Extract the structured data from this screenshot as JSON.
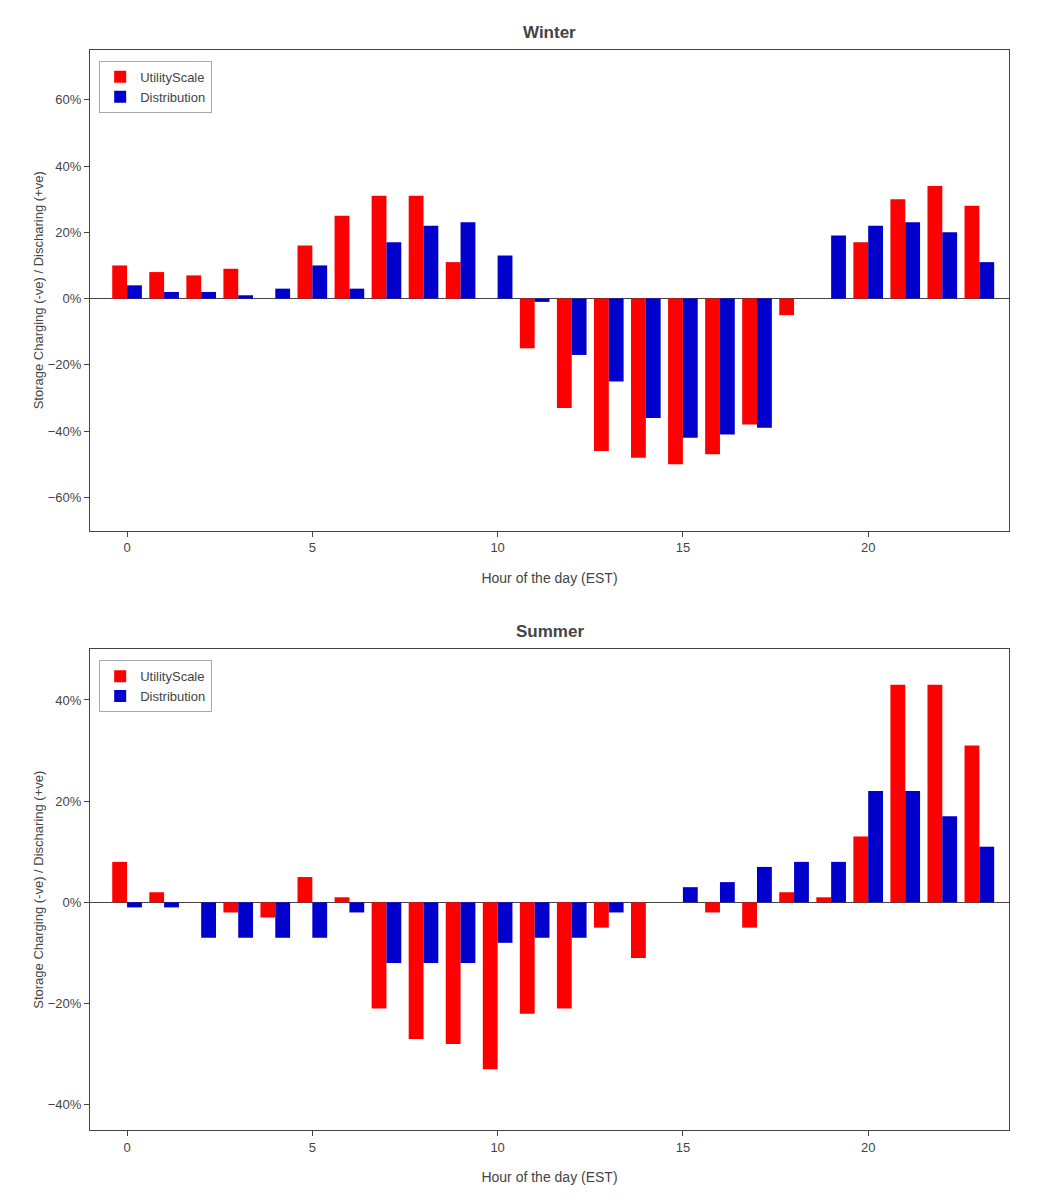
{
  "chart_data": [
    {
      "type": "bar",
      "title": "Winter",
      "x_label": "Hour of the day (EST)",
      "y_label": "Storage Charging (-ve) / Discharing (+ve)",
      "x": [
        0,
        1,
        2,
        3,
        4,
        5,
        6,
        7,
        8,
        9,
        10,
        11,
        12,
        13,
        14,
        15,
        16,
        17,
        18,
        19,
        20,
        21,
        22,
        23
      ],
      "series": [
        {
          "name": "UtilityScale",
          "color": "#FF0000",
          "values": [
            10,
            8,
            7,
            9,
            0,
            16,
            25,
            31,
            31,
            11,
            0,
            -15,
            -33,
            -46,
            -48,
            -50,
            -47,
            -38,
            -5,
            0,
            17,
            30,
            34,
            28
          ]
        },
        {
          "name": "Distribution",
          "color": "#0000CC",
          "values": [
            4,
            2,
            2,
            1,
            3,
            10,
            3,
            17,
            22,
            23,
            13,
            -1,
            -17,
            -25,
            -36,
            -42,
            -41,
            -39,
            0,
            19,
            22,
            23,
            20,
            11
          ]
        }
      ],
      "xlim": [
        -1.0,
        23.8
      ],
      "xticks": [
        0,
        5,
        10,
        15,
        20
      ],
      "ylim": [
        -70,
        75
      ],
      "yticks": [
        {
          "value": -60,
          "label": "−60%"
        },
        {
          "value": -40,
          "label": "−40%"
        },
        {
          "value": -20,
          "label": "−20%"
        },
        {
          "value": 0,
          "label": "0%"
        },
        {
          "value": 20,
          "label": "20%"
        },
        {
          "value": 40,
          "label": "40%"
        },
        {
          "value": 60,
          "label": "60%"
        }
      ],
      "grid": false,
      "legend": "upper left"
    },
    {
      "type": "bar",
      "title": "Summer",
      "x_label": "Hour of the day (EST)",
      "y_label": "Storage Charging (-ve) / Discharing (+ve)",
      "x": [
        0,
        1,
        2,
        3,
        4,
        5,
        6,
        7,
        8,
        9,
        10,
        11,
        12,
        13,
        14,
        15,
        16,
        17,
        18,
        19,
        20,
        21,
        22,
        23
      ],
      "series": [
        {
          "name": "UtilityScale",
          "color": "#FF0000",
          "values": [
            8,
            2,
            0,
            -2,
            -3,
            5,
            1,
            -21,
            -27,
            -28,
            -33,
            -22,
            -21,
            -5,
            -11,
            0,
            -2,
            -5,
            2,
            1,
            13,
            43,
            43,
            31
          ]
        },
        {
          "name": "Distribution",
          "color": "#0000CC",
          "values": [
            -1,
            -1,
            -7,
            -7,
            -7,
            -7,
            -2,
            -12,
            -12,
            -12,
            -8,
            -7,
            -7,
            -2,
            0,
            3,
            4,
            7,
            8,
            8,
            22,
            22,
            17,
            11
          ]
        }
      ],
      "xlim": [
        -1.0,
        23.8
      ],
      "xticks": [
        0,
        5,
        10,
        15,
        20
      ],
      "ylim": [
        -45,
        50
      ],
      "yticks": [
        {
          "value": -40,
          "label": "−40%"
        },
        {
          "value": -20,
          "label": "−20%"
        },
        {
          "value": 0,
          "label": "0%"
        },
        {
          "value": 20,
          "label": "20%"
        },
        {
          "value": 40,
          "label": "40%"
        }
      ],
      "grid": false,
      "legend": "upper left"
    }
  ]
}
